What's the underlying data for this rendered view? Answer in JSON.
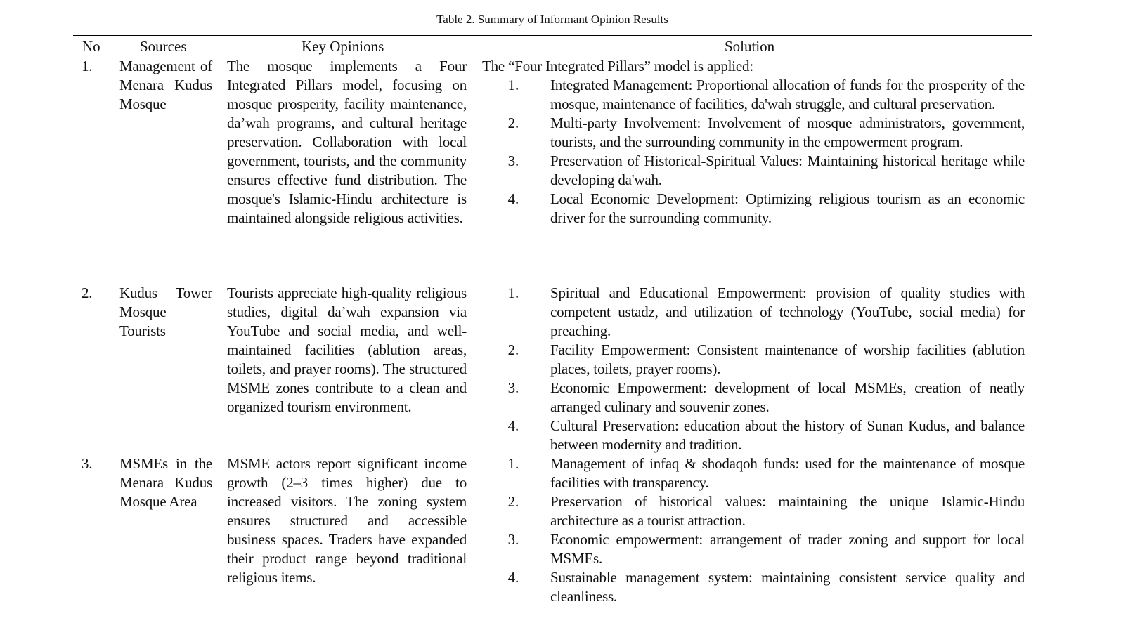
{
  "title": "Table 2. Summary of Informant Opinion Results",
  "headers": {
    "no": "No",
    "sources": "Sources",
    "opinions": "Key Opinions",
    "solution": "Solution"
  },
  "rows": [
    {
      "no": "1.",
      "source": "Management of Menara Kudus Mosque",
      "opinion": "The mosque implements a Four Integrated Pillars model, focusing on mosque prosperity, facility maintenance, da’wah programs, and cultural heritage preservation. Collaboration with local government, tourists, and the community ensures effective fund distribution. The mosque's Islamic-Hindu architecture is maintained alongside religious activities.",
      "intro": "The “Four Integrated Pillars” model is applied:",
      "items": [
        {
          "n": "1.",
          "t": "Integrated Management: Proportional allocation of funds for the prosperity of the mosque, maintenance of facilities, da'wah struggle, and cultural preservation."
        },
        {
          "n": "2.",
          "t": "Multi-party Involvement: Involvement of mosque administrators, government, tourists, and the surrounding community in the empowerment program."
        },
        {
          "n": "3.",
          "t": "Preservation of Historical-Spiritual Values: Maintaining historical heritage while developing da'wah."
        },
        {
          "n": "4.",
          "t": "Local Economic Development: Optimizing religious tourism as an economic driver for the surrounding community."
        }
      ]
    },
    {
      "no": "2.",
      "source": "Kudus Tower Mosque Tourists",
      "opinion": "Tourists appreciate high-quality religious studies, digital da’wah expansion via YouTube and social media, and well-maintained facilities (ablution areas, toilets, and prayer rooms). The structured MSME zones contribute to a clean and organized tourism environment.",
      "intro": "",
      "items": [
        {
          "n": "1.",
          "t": "Spiritual and Educational Empowerment: provision of quality studies with competent ustadz, and utilization of technology (YouTube, social media) for preaching."
        },
        {
          "n": "2.",
          "t": "Facility Empowerment: Consistent maintenance of worship facilities (ablution places, toilets, prayer rooms)."
        },
        {
          "n": "3.",
          "t": "Economic Empowerment: development of local MSMEs, creation of neatly arranged culinary and souvenir zones."
        },
        {
          "n": "4.",
          "t": "Cultural Preservation: education about the history of Sunan Kudus, and balance between modernity and tradition."
        }
      ]
    },
    {
      "no": "3.",
      "source": "MSMEs in the Menara Kudus Mosque Area",
      "opinion": "MSME actors report significant income growth (2–3 times higher) due to increased visitors. The zoning system ensures structured and accessible business spaces. Traders have expanded their product range beyond traditional religious items.",
      "intro": "",
      "items": [
        {
          "n": "1.",
          "t": "Management of infaq & shodaqoh funds: used for the maintenance of mosque facilities with transparency."
        },
        {
          "n": "2.",
          "t": "Preservation of historical values: maintaining the unique Islamic-Hindu architecture as a tourist attraction."
        },
        {
          "n": "3.",
          "t": "Economic empowerment: arrangement of trader zoning and support for local MSMEs."
        },
        {
          "n": "4.",
          "t": "Sustainable management system: maintaining consistent service quality and cleanliness."
        }
      ]
    }
  ]
}
